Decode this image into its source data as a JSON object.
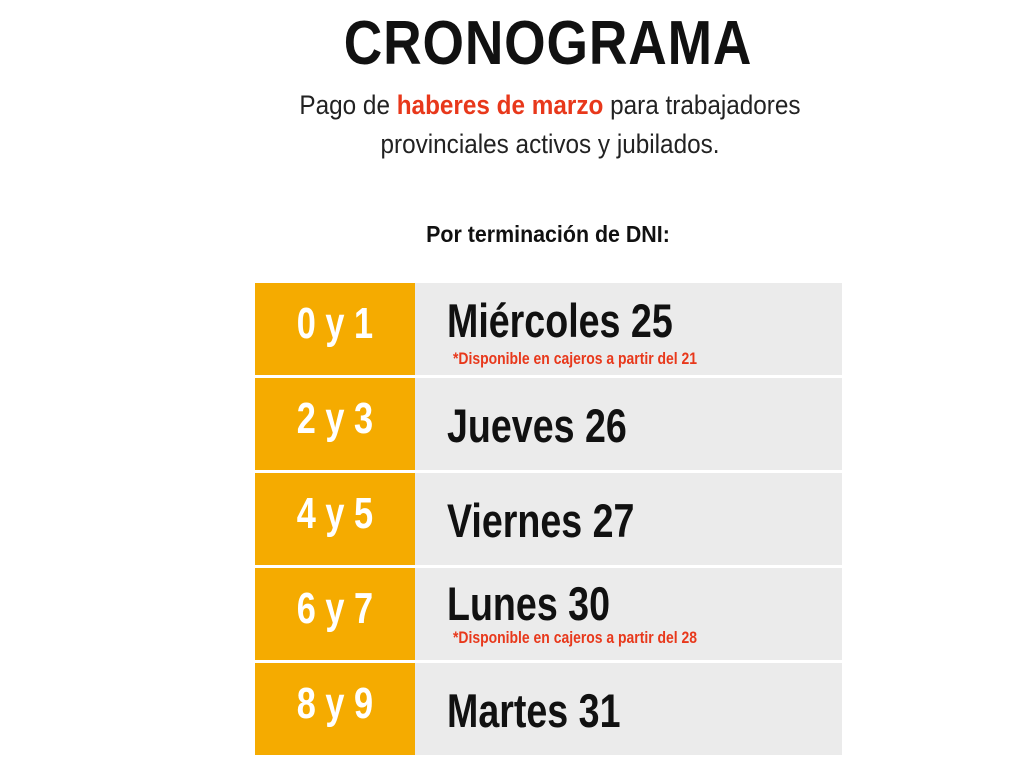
{
  "header": {
    "title": "CRONOGRAMA",
    "subtitle_prefix": "Pago de ",
    "subtitle_highlight": "haberes de marzo",
    "subtitle_suffix": " para trabajadores provinciales activos y jubilados.",
    "highlight_color": "#e8381b"
  },
  "section_label": "Por terminación de DNI:",
  "colors": {
    "key_bg": "#f5ab00",
    "row_bg": "#ebebeb",
    "note": "#e8381b"
  },
  "schedule": [
    {
      "dni": "0 y 1",
      "day": "Miércoles 25",
      "note": "*Disponible en cajeros a partir del 21"
    },
    {
      "dni": "2 y 3",
      "day": "Jueves 26"
    },
    {
      "dni": "4 y 5",
      "day": "Viernes 27"
    },
    {
      "dni": "6 y 7",
      "day": "Lunes 30",
      "note": "*Disponible en cajeros a partir del 28"
    },
    {
      "dni": "8 y 9",
      "day": "Martes 31"
    }
  ]
}
